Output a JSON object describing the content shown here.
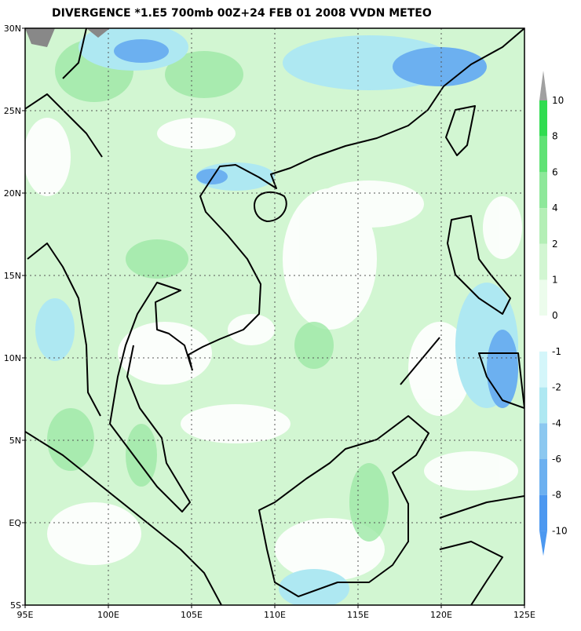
{
  "title": "DIVERGENCE *1.E5 700mb 00Z+24 FEB 01 2008 VVDN METEO",
  "map": {
    "lon_ticks": [
      "95E",
      "100E",
      "105E",
      "110E",
      "115E",
      "120E",
      "125E"
    ],
    "lat_ticks": [
      "30N",
      "25N",
      "20N",
      "15N",
      "10N",
      "5N",
      "EQ",
      "5S"
    ]
  },
  "colorbar": {
    "labels": [
      10,
      8,
      6,
      4,
      2,
      1,
      0,
      -1,
      -2,
      -4,
      -6,
      -8,
      -10
    ],
    "colors": [
      "#a0a0a0",
      "#30dc50",
      "#5fe274",
      "#8ee89a",
      "#b4efb6",
      "#d2f6d2",
      "#ecfcec",
      "#ffffff",
      "#d4f6fa",
      "#aee8f2",
      "#8cc8f0",
      "#6cb0f0",
      "#4c98f0",
      "#4c98f0"
    ]
  }
}
